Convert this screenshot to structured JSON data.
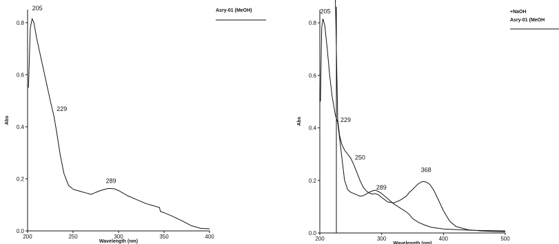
{
  "chart_data": [
    {
      "type": "line",
      "xlabel": "Wavelength (nm)",
      "ylabel": "Abs",
      "xlim": [
        200,
        400
      ],
      "ylim": [
        0,
        0.85
      ],
      "x_ticks": [
        "200",
        "250",
        "300",
        "350",
        "400"
      ],
      "y_ticks": [
        "0.0",
        "0.2",
        "0.4",
        "0.6",
        "0.8"
      ],
      "legend": [
        "Asry-01 (MeOH)"
      ],
      "legend_position": "top-right",
      "annotations": [
        "205",
        "229",
        "289"
      ],
      "series": [
        {
          "name": "Asry-01 (MeOH)",
          "x": [
            201,
            203,
            205,
            207,
            210,
            215,
            220,
            225,
            229,
            232,
            236,
            240,
            245,
            250,
            255,
            260,
            265,
            270,
            275,
            280,
            285,
            289,
            295,
            300,
            305,
            310,
            320,
            330,
            340,
            345,
            346,
            350,
            360,
            370,
            380,
            390,
            400
          ],
          "values": [
            0.55,
            0.78,
            0.815,
            0.8,
            0.74,
            0.66,
            0.58,
            0.5,
            0.44,
            0.38,
            0.29,
            0.22,
            0.175,
            0.16,
            0.155,
            0.15,
            0.145,
            0.14,
            0.148,
            0.155,
            0.16,
            0.163,
            0.162,
            0.155,
            0.145,
            0.135,
            0.12,
            0.105,
            0.095,
            0.09,
            0.075,
            0.07,
            0.055,
            0.038,
            0.02,
            0.01,
            0.008
          ]
        }
      ]
    },
    {
      "type": "line",
      "xlabel": "Wavelength (nm)",
      "ylabel": "Abs",
      "xlim": [
        200,
        500
      ],
      "ylim": [
        0,
        0.85
      ],
      "x_ticks": [
        "200",
        "300",
        "400",
        "500"
      ],
      "y_ticks": [
        "0.0",
        "0.2",
        "0.4",
        "0.6",
        "0.8"
      ],
      "legend": [
        "+NaOH",
        "Asry-01 (MeOH"
      ],
      "legend_position": "top-right",
      "annotations": [
        "205",
        "229",
        "250",
        "289",
        "368"
      ],
      "series": [
        {
          "name": "Asry-01 (MeOH",
          "x": [
            201,
            203,
            205,
            208,
            212,
            216,
            220,
            225,
            229,
            235,
            240,
            245,
            250,
            255,
            260,
            265,
            270,
            275,
            280,
            285,
            289,
            295,
            300,
            310,
            320,
            330,
            340,
            345,
            350,
            360,
            370,
            380,
            400,
            450,
            500
          ],
          "values": [
            0.5,
            0.78,
            0.815,
            0.79,
            0.7,
            0.6,
            0.52,
            0.45,
            0.42,
            0.3,
            0.2,
            0.165,
            0.155,
            0.15,
            0.145,
            0.14,
            0.142,
            0.148,
            0.155,
            0.16,
            0.163,
            0.158,
            0.15,
            0.13,
            0.11,
            0.095,
            0.08,
            0.07,
            0.055,
            0.04,
            0.03,
            0.022,
            0.015,
            0.01,
            0.008
          ]
        },
        {
          "name": "+NaOH",
          "x": [
            224,
            226,
            228,
            229,
            232,
            236,
            240,
            245,
            250,
            255,
            260,
            265,
            270,
            275,
            280,
            285,
            289,
            295,
            300,
            310,
            320,
            330,
            340,
            345,
            350,
            355,
            360,
            365,
            368,
            372,
            378,
            385,
            392,
            400,
            410,
            420,
            440,
            460,
            480,
            500
          ],
          "values": [
            1.0,
            0.8,
            0.55,
            0.43,
            0.37,
            0.335,
            0.315,
            0.3,
            0.285,
            0.26,
            0.23,
            0.2,
            0.175,
            0.16,
            0.152,
            0.148,
            0.15,
            0.145,
            0.135,
            0.118,
            0.115,
            0.125,
            0.14,
            0.155,
            0.165,
            0.178,
            0.188,
            0.195,
            0.196,
            0.194,
            0.185,
            0.16,
            0.125,
            0.085,
            0.045,
            0.025,
            0.012,
            0.008,
            0.006,
            0.005
          ]
        }
      ]
    }
  ]
}
